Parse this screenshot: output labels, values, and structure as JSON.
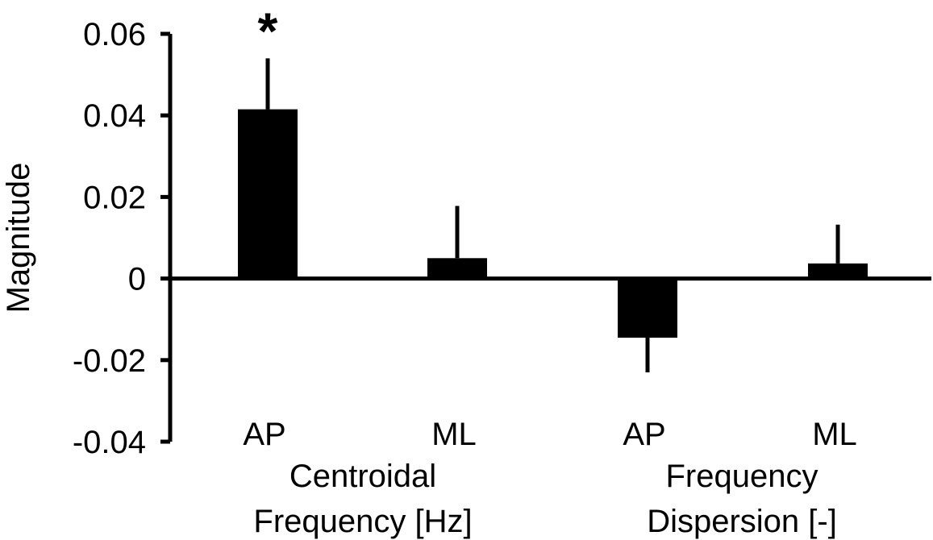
{
  "chart_data": {
    "type": "bar",
    "title": "",
    "xlabel": "",
    "ylabel": "Magnitude",
    "ylim": [
      -0.04,
      0.06
    ],
    "yticks": [
      0.06,
      0.04,
      0.02,
      0,
      -0.02,
      -0.04
    ],
    "ytick_labels": [
      "0.06",
      "0.04",
      "0.02",
      "0",
      "-0.02",
      "-0.04"
    ],
    "grid": false,
    "legend": "none",
    "categories": [
      "AP",
      "ML",
      "AP",
      "ML"
    ],
    "values": [
      0.0415,
      0.005,
      -0.0145,
      0.0037
    ],
    "error_bars": [
      0.0125,
      0.0128,
      0.0085,
      0.0095
    ],
    "significance": [
      "*",
      "",
      "",
      ""
    ],
    "groups": [
      {
        "lines": [
          "Centroidal",
          "Frequency [Hz]"
        ],
        "categories": [
          0,
          1
        ]
      },
      {
        "lines": [
          "Frequency",
          "Dispersion [-]"
        ],
        "categories": [
          2,
          3
        ]
      }
    ],
    "colors": {
      "bar": "#000000",
      "axis": "#000000",
      "background": "#ffffff"
    }
  }
}
